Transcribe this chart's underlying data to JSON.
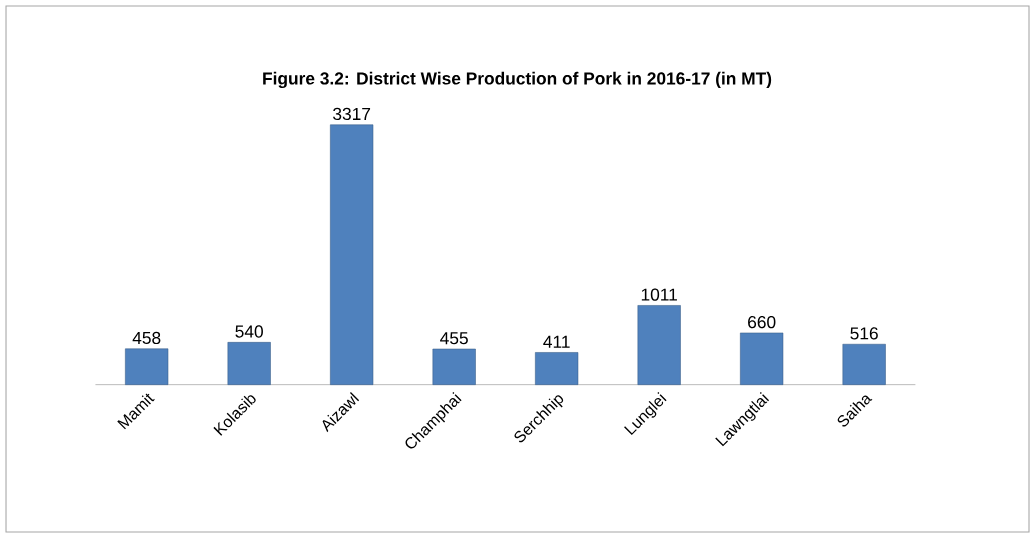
{
  "chart_data": {
    "type": "bar",
    "title": "Figure 3.2: District Wise Production of Pork in 2016-17 (in MT)",
    "categories": [
      "Mamit",
      "Kolasib",
      "Aizawl",
      "Champhai",
      "Serchhip",
      "Lunglei",
      "Lawngtlai",
      "Saiha"
    ],
    "values": [
      458,
      540,
      3317,
      455,
      411,
      1011,
      660,
      516
    ],
    "color": "#4f81bd",
    "data_labels": true
  }
}
